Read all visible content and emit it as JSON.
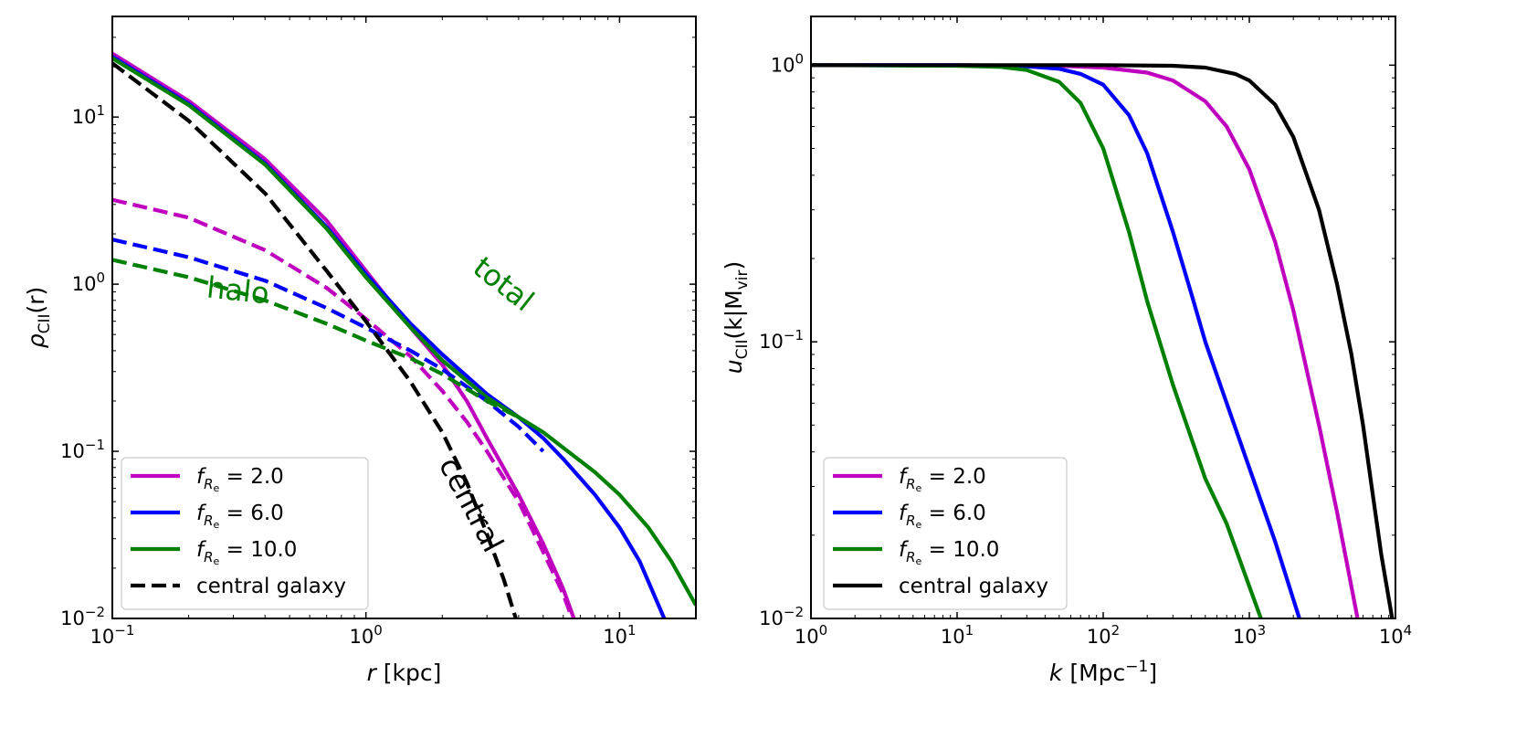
{
  "chart_data": [
    {
      "type": "line",
      "scale": {
        "x": "log",
        "y": "log"
      },
      "xlim": [
        0.1,
        20
      ],
      "ylim": [
        0.01,
        40
      ],
      "xlabel": {
        "italic": "r",
        "rest": " [kpc]"
      },
      "ylabel": {
        "symbol": "ρ",
        "sub": "CII",
        "rest": "(r)"
      },
      "x_ticks": [
        {
          "value": 0.1,
          "base": "10",
          "exp": "−1"
        },
        {
          "value": 1,
          "base": "10",
          "exp": "0"
        },
        {
          "value": 10,
          "base": "10",
          "exp": "1"
        }
      ],
      "y_ticks": [
        {
          "value": 0.01,
          "base": "10",
          "exp": "−2"
        },
        {
          "value": 0.1,
          "base": "10",
          "exp": "−1"
        },
        {
          "value": 1,
          "base": "10",
          "exp": "0"
        },
        {
          "value": 10,
          "base": "10",
          "exp": "1"
        }
      ],
      "annotations": [
        {
          "text": "total",
          "x": 3.3,
          "y": 0.9,
          "angle": 38,
          "color": "#008000"
        },
        {
          "text": "halo",
          "x": 0.31,
          "y": 0.8,
          "angle": 6,
          "color": "#008000"
        },
        {
          "text": "central",
          "x": 2.4,
          "y": 0.045,
          "angle": 62,
          "color": "#000000"
        }
      ],
      "legend": {
        "placement": "lower-left",
        "entries": [
          {
            "label_prefix": "f",
            "label_value": " = 2.0",
            "color": "#bf00bf",
            "dash": "solid"
          },
          {
            "label_prefix": "f",
            "label_value": " = 6.0",
            "color": "#0000ff",
            "dash": "solid"
          },
          {
            "label_prefix": "f",
            "label_value": " = 10.0",
            "color": "#008000",
            "dash": "solid"
          },
          {
            "label_prefix": "",
            "label_value": "central galaxy",
            "color": "#000000",
            "dash": "dashed"
          }
        ]
      },
      "series": [
        {
          "name": "total f=2.0",
          "color": "#bf00bf",
          "dash": "solid",
          "x": [
            0.1,
            0.2,
            0.4,
            0.7,
            1.0,
            1.5,
            2.0,
            2.5,
            3.0,
            4.0,
            5.0,
            6.0,
            6.6
          ],
          "y": [
            24,
            12.5,
            5.6,
            2.4,
            1.2,
            0.55,
            0.33,
            0.2,
            0.12,
            0.055,
            0.028,
            0.015,
            0.01
          ]
        },
        {
          "name": "total f=6.0",
          "color": "#0000ff",
          "dash": "solid",
          "x": [
            0.1,
            0.2,
            0.4,
            0.7,
            1.0,
            1.5,
            2.0,
            3.0,
            4.0,
            5.0,
            6.0,
            8.0,
            10.0,
            12.0,
            15.0
          ],
          "y": [
            23,
            12,
            5.3,
            2.2,
            1.15,
            0.58,
            0.38,
            0.22,
            0.16,
            0.12,
            0.09,
            0.055,
            0.035,
            0.022,
            0.01
          ]
        },
        {
          "name": "total f=10.0",
          "color": "#008000",
          "dash": "solid",
          "x": [
            0.1,
            0.2,
            0.4,
            0.7,
            1.0,
            1.5,
            2.0,
            3.0,
            4.0,
            5.0,
            6.0,
            8.0,
            10.0,
            13.0,
            16.0,
            20.0
          ],
          "y": [
            22.5,
            11.8,
            5.2,
            2.15,
            1.1,
            0.55,
            0.35,
            0.21,
            0.16,
            0.13,
            0.105,
            0.075,
            0.055,
            0.035,
            0.022,
            0.012
          ]
        },
        {
          "name": "halo f=2.0",
          "color": "#bf00bf",
          "dash": "dashed",
          "x": [
            0.1,
            0.2,
            0.4,
            0.7,
            1.0,
            1.5,
            2.0,
            2.5,
            3.0,
            4.0,
            5.0,
            6.0,
            6.5
          ],
          "y": [
            3.2,
            2.5,
            1.6,
            0.95,
            0.62,
            0.37,
            0.23,
            0.15,
            0.1,
            0.05,
            0.025,
            0.014,
            0.01
          ]
        },
        {
          "name": "halo f=6.0",
          "color": "#0000ff",
          "dash": "dashed",
          "x": [
            0.1,
            0.2,
            0.4,
            0.7,
            1.0,
            1.5,
            2.0,
            3.0,
            4.0,
            5.0
          ],
          "y": [
            1.85,
            1.45,
            1.05,
            0.72,
            0.55,
            0.4,
            0.31,
            0.2,
            0.14,
            0.1
          ]
        },
        {
          "name": "halo f=10.0",
          "color": "#008000",
          "dash": "dashed",
          "x": [
            0.1,
            0.2,
            0.4,
            0.7,
            1.0,
            1.5,
            2.0,
            3.0,
            4.0
          ],
          "y": [
            1.4,
            1.1,
            0.8,
            0.58,
            0.46,
            0.36,
            0.29,
            0.2,
            0.16
          ]
        },
        {
          "name": "central galaxy",
          "color": "#000000",
          "dash": "dashed",
          "x": [
            0.1,
            0.2,
            0.4,
            0.7,
            1.0,
            1.5,
            2.0,
            2.5,
            3.0,
            3.5,
            3.9
          ],
          "y": [
            21,
            9.5,
            3.5,
            1.2,
            0.6,
            0.26,
            0.13,
            0.065,
            0.032,
            0.017,
            0.01
          ]
        }
      ]
    },
    {
      "type": "line",
      "scale": {
        "x": "log",
        "y": "log"
      },
      "xlim": [
        1,
        10000
      ],
      "ylim": [
        0.01,
        1.5
      ],
      "xlabel": {
        "italic": "k",
        "rest": " [Mpc",
        "sup": "−1",
        "end": "]"
      },
      "ylabel": {
        "symbol": "u",
        "sub": "CII",
        "rest": "(k|M",
        "sub2": "vir",
        "end": ")"
      },
      "x_ticks": [
        {
          "value": 1,
          "base": "10",
          "exp": "0"
        },
        {
          "value": 10,
          "base": "10",
          "exp": "1"
        },
        {
          "value": 100,
          "base": "10",
          "exp": "2"
        },
        {
          "value": 1000,
          "base": "10",
          "exp": "3"
        },
        {
          "value": 10000,
          "base": "10",
          "exp": "4"
        }
      ],
      "y_ticks": [
        {
          "value": 0.01,
          "base": "10",
          "exp": "−2"
        },
        {
          "value": 0.1,
          "base": "10",
          "exp": "−1"
        },
        {
          "value": 1,
          "base": "10",
          "exp": "0"
        }
      ],
      "legend": {
        "placement": "lower-left",
        "entries": [
          {
            "label_prefix": "f",
            "label_value": " = 2.0",
            "color": "#bf00bf",
            "dash": "solid"
          },
          {
            "label_prefix": "f",
            "label_value": " = 6.0",
            "color": "#0000ff",
            "dash": "solid"
          },
          {
            "label_prefix": "f",
            "label_value": " = 10.0",
            "color": "#008000",
            "dash": "solid"
          },
          {
            "label_prefix": "",
            "label_value": "central galaxy",
            "color": "#000000",
            "dash": "solid"
          }
        ]
      },
      "series": [
        {
          "name": "f=2.0",
          "color": "#bf00bf",
          "dash": "solid",
          "x": [
            1,
            10,
            50,
            100,
            200,
            300,
            500,
            700,
            1000,
            1500,
            2000,
            3000,
            4000,
            5500
          ],
          "y": [
            1.0,
            1.0,
            0.995,
            0.98,
            0.94,
            0.88,
            0.74,
            0.6,
            0.42,
            0.23,
            0.13,
            0.05,
            0.024,
            0.01
          ]
        },
        {
          "name": "f=6.0",
          "color": "#0000ff",
          "dash": "solid",
          "x": [
            1,
            10,
            30,
            50,
            70,
            100,
            150,
            200,
            300,
            400,
            500,
            700,
            1000,
            1500,
            2200
          ],
          "y": [
            1.0,
            1.0,
            0.99,
            0.97,
            0.93,
            0.85,
            0.66,
            0.48,
            0.25,
            0.15,
            0.1,
            0.06,
            0.035,
            0.019,
            0.01
          ]
        },
        {
          "name": "f=10.0",
          "color": "#008000",
          "dash": "solid",
          "x": [
            1,
            10,
            20,
            30,
            50,
            70,
            100,
            150,
            200,
            300,
            400,
            500,
            700,
            1200
          ],
          "y": [
            1.0,
            0.995,
            0.985,
            0.96,
            0.87,
            0.73,
            0.5,
            0.25,
            0.14,
            0.07,
            0.045,
            0.032,
            0.022,
            0.01
          ]
        },
        {
          "name": "central galaxy",
          "color": "#000000",
          "dash": "solid",
          "x": [
            1,
            100,
            300,
            500,
            800,
            1000,
            1500,
            2000,
            3000,
            4000,
            5000,
            6000,
            7000,
            8000,
            9500
          ],
          "y": [
            1.0,
            1.0,
            0.995,
            0.98,
            0.93,
            0.88,
            0.72,
            0.55,
            0.3,
            0.16,
            0.09,
            0.05,
            0.028,
            0.017,
            0.01
          ]
        }
      ]
    }
  ]
}
